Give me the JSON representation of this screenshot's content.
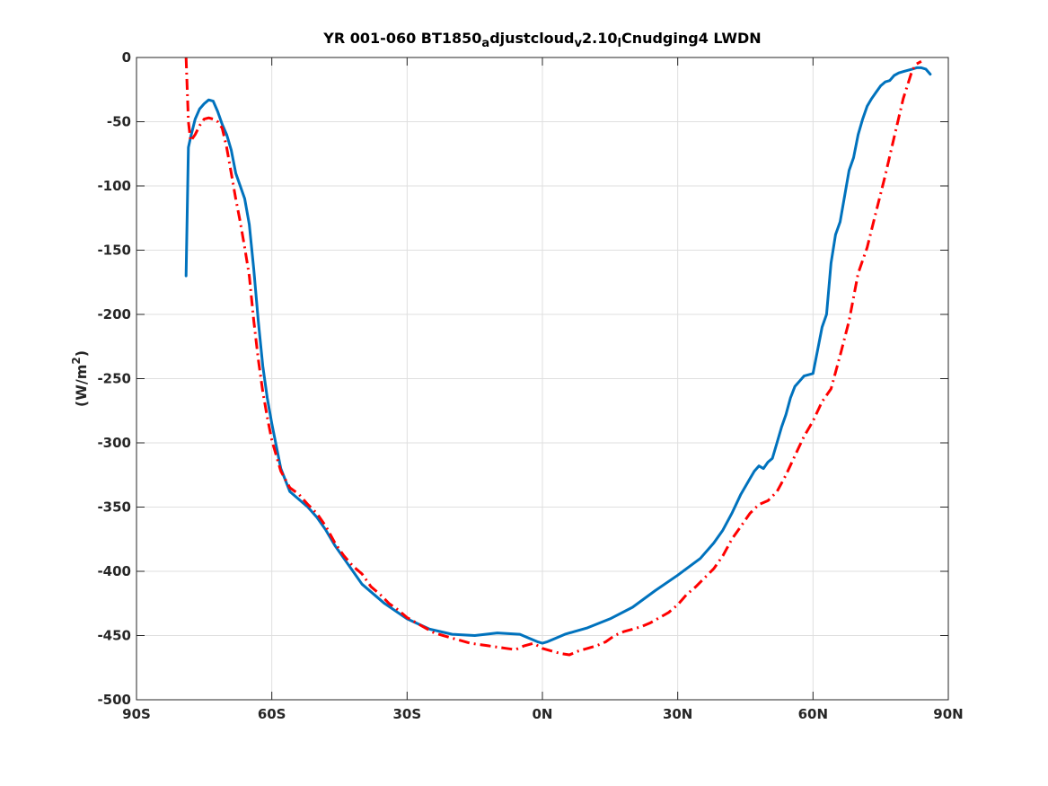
{
  "chart_data": {
    "type": "line",
    "title": {
      "parts": [
        {
          "text": "YR 001-060 BT1850",
          "style": "normal"
        },
        {
          "text": "a",
          "style": "sub"
        },
        {
          "text": "djustcloud",
          "style": "normal"
        },
        {
          "text": "v",
          "style": "sub"
        },
        {
          "text": "2.10",
          "style": "normal"
        },
        {
          "text": "l",
          "style": "sub"
        },
        {
          "text": "Cnudging4 LWDN",
          "style": "normal"
        }
      ]
    },
    "ylabel": {
      "prefix": "(W/m",
      "sup": "2",
      "suffix": ")"
    },
    "xlabel": "",
    "xlim": [
      -90,
      90
    ],
    "ylim": [
      -500,
      0
    ],
    "grid": true,
    "x_ticks": [
      {
        "value": -90,
        "label": "90S"
      },
      {
        "value": -60,
        "label": "60S"
      },
      {
        "value": -30,
        "label": "30S"
      },
      {
        "value": 0,
        "label": "0N"
      },
      {
        "value": 30,
        "label": "30N"
      },
      {
        "value": 60,
        "label": "60N"
      },
      {
        "value": 90,
        "label": "90N"
      }
    ],
    "y_ticks": [
      {
        "value": 0,
        "label": "0"
      },
      {
        "value": -50,
        "label": "-50"
      },
      {
        "value": -100,
        "label": "-100"
      },
      {
        "value": -150,
        "label": "-150"
      },
      {
        "value": -200,
        "label": "-200"
      },
      {
        "value": -250,
        "label": "-250"
      },
      {
        "value": -300,
        "label": "-300"
      },
      {
        "value": -350,
        "label": "-350"
      },
      {
        "value": -400,
        "label": "-400"
      },
      {
        "value": -450,
        "label": "-450"
      },
      {
        "value": -500,
        "label": "-500"
      }
    ],
    "series": [
      {
        "color": "#0072BD",
        "style": "solid",
        "x": [
          -79,
          -78.5,
          -78,
          -77,
          -76,
          -75,
          -74,
          -73,
          -72,
          -71,
          -70,
          -69,
          -68,
          -67,
          -66,
          -65,
          -64,
          -63,
          -62,
          -61,
          -60,
          -58,
          -56,
          -54,
          -52,
          -50,
          -48,
          -46,
          -44,
          -42,
          -40,
          -35,
          -30,
          -25,
          -20,
          -15,
          -10,
          -5,
          -3,
          -1,
          0,
          1,
          3,
          5,
          7,
          10,
          15,
          20,
          25,
          30,
          35,
          38,
          40,
          42,
          44,
          45,
          46,
          47,
          48,
          49,
          50,
          51,
          52,
          53,
          54,
          55,
          56,
          57,
          58,
          59,
          60,
          61,
          62,
          63,
          64,
          65,
          66,
          67,
          68,
          69,
          70,
          71,
          72,
          73,
          74,
          75,
          76,
          77,
          78,
          79,
          80,
          81,
          82,
          83,
          84,
          85,
          86
        ],
        "y": [
          -170,
          -70,
          -62,
          -48,
          -40,
          -36,
          -33,
          -34,
          -42,
          -52,
          -60,
          -72,
          -90,
          -100,
          -110,
          -130,
          -165,
          -205,
          -240,
          -265,
          -285,
          -320,
          -338,
          -344,
          -350,
          -358,
          -368,
          -380,
          -390,
          -400,
          -410,
          -425,
          -437,
          -445,
          -449,
          -450,
          -448,
          -449,
          -452,
          -455,
          -456,
          -455,
          -452,
          -449,
          -447,
          -444,
          -437,
          -428,
          -415,
          -403,
          -390,
          -378,
          -368,
          -355,
          -340,
          -334,
          -328,
          -322,
          -318,
          -320,
          -315,
          -312,
          -300,
          -288,
          -278,
          -265,
          -256,
          -252,
          -248,
          -247,
          -246,
          -228,
          -210,
          -200,
          -160,
          -138,
          -128,
          -108,
          -88,
          -78,
          -60,
          -48,
          -38,
          -32,
          -27,
          -22,
          -19,
          -18,
          -14,
          -12,
          -11,
          -10,
          -9,
          -8,
          -8,
          -9,
          -13
        ]
      },
      {
        "color": "#FF0000",
        "style": "dash-dot",
        "x": [
          -79,
          -78.5,
          -78,
          -77,
          -76,
          -75,
          -74,
          -73,
          -72,
          -71,
          -70,
          -69,
          -68,
          -67,
          -66,
          -65,
          -64,
          -63,
          -62,
          -61,
          -60,
          -58,
          -56,
          -54,
          -52,
          -50,
          -48,
          -46,
          -44,
          -42,
          -40,
          -38,
          -36,
          -34,
          -32,
          -30,
          -28,
          -26,
          -24,
          -22,
          -20,
          -18,
          -16,
          -14,
          -12,
          -10,
          -8,
          -6,
          -4,
          -2,
          0,
          2,
          4,
          6,
          8,
          10,
          12,
          14,
          16,
          18,
          20,
          22,
          24,
          26,
          28,
          30,
          32,
          34,
          36,
          38,
          40,
          42,
          44,
          46,
          48,
          50,
          52,
          54,
          56,
          58,
          60,
          62,
          64,
          66,
          68,
          70,
          72,
          74,
          76,
          78,
          80,
          82,
          83,
          84
        ],
        "y": [
          0,
          -50,
          -65,
          -60,
          -53,
          -48,
          -47,
          -48,
          -50,
          -55,
          -70,
          -90,
          -110,
          -128,
          -148,
          -170,
          -205,
          -235,
          -260,
          -280,
          -298,
          -322,
          -335,
          -340,
          -348,
          -355,
          -365,
          -378,
          -388,
          -396,
          -402,
          -412,
          -418,
          -425,
          -430,
          -436,
          -440,
          -444,
          -448,
          -450,
          -452,
          -454,
          -456,
          -457,
          -458,
          -459,
          -460,
          -461,
          -458,
          -456,
          -460,
          -462,
          -464,
          -465,
          -462,
          -460,
          -458,
          -455,
          -450,
          -447,
          -445,
          -443,
          -440,
          -436,
          -432,
          -426,
          -418,
          -412,
          -405,
          -398,
          -388,
          -375,
          -365,
          -355,
          -348,
          -345,
          -338,
          -325,
          -310,
          -295,
          -283,
          -268,
          -258,
          -232,
          -205,
          -168,
          -148,
          -120,
          -92,
          -62,
          -32,
          -10,
          -5,
          -3
        ]
      }
    ]
  }
}
